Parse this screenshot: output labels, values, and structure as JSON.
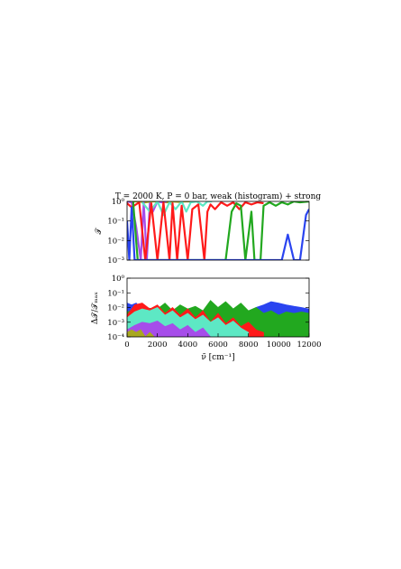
{
  "title": "T = 2000 K, P = 0 bar, weak (histogram) + strong",
  "colors": {
    "red": "#ff1a1a",
    "green": "#22a81f",
    "blue": "#2a44f0",
    "aquamarine": "#5de8c4",
    "purple": "#a64dea",
    "olive": "#a8a820"
  },
  "chart_data": [
    {
      "type": "line",
      "panel": "top",
      "ylabel": "𝒯",
      "yscale": "log",
      "xlim": [
        0,
        12000
      ],
      "ylim": [
        0.001,
        1
      ],
      "yticks": [
        {
          "value": 1,
          "label": "10⁰"
        },
        {
          "value": 0.1,
          "label": "10⁻¹"
        },
        {
          "value": 0.01,
          "label": "10⁻²"
        },
        {
          "value": 0.001,
          "label": "10⁻³"
        }
      ],
      "grid": false,
      "series": [
        {
          "color": "olive",
          "x": [
            0,
            400,
            800,
            1200,
            1600,
            2200,
            2600,
            3000,
            3400,
            3800,
            4200
          ],
          "y": [
            1,
            1,
            1,
            0.9,
            1,
            1,
            0.9,
            1,
            0.95,
            1,
            1
          ]
        },
        {
          "color": "purple",
          "x": [
            0,
            300,
            600,
            900,
            1100,
            1300,
            1500,
            1700,
            2000,
            2300,
            2600
          ],
          "y": [
            1,
            0.9,
            0.05,
            0.001,
            0.9,
            0.001,
            0.8,
            0.3,
            1,
            0.9,
            1
          ]
        },
        {
          "color": "aquamarine",
          "x": [
            1000,
            1500,
            2000,
            2400,
            2800,
            3200,
            3600,
            3900,
            4200,
            4600,
            5000,
            5300,
            5600
          ],
          "y": [
            0.9,
            0.3,
            1,
            0.2,
            0.9,
            0.4,
            1,
            0.3,
            0.9,
            1,
            0.6,
            1,
            1
          ]
        },
        {
          "color": "red",
          "x": [
            0,
            300,
            800,
            1200,
            1600,
            2000,
            2400,
            2800,
            3000,
            3300,
            3600,
            4000,
            4300,
            4700,
            5100,
            5300,
            5500,
            5800,
            6200,
            6600,
            7000,
            7400,
            7800,
            8200,
            8600,
            9000
          ],
          "y": [
            0.8,
            0.5,
            0.9,
            0.001,
            0.8,
            0.001,
            0.9,
            0.001,
            0.8,
            0.001,
            0.6,
            0.001,
            0.4,
            0.7,
            0.001,
            0.3,
            0.7,
            0.4,
            0.9,
            0.6,
            0.9,
            0.4,
            0.9,
            0.7,
            0.9,
            0.8
          ]
        },
        {
          "color": "green",
          "x": [
            400,
            700,
            900,
            1100,
            1500,
            2000,
            2500,
            3000,
            3300,
            3600,
            4000,
            4500,
            5000,
            5500,
            6000,
            6500,
            6900,
            7200,
            7500,
            7800,
            8200,
            8400,
            8600,
            8800,
            9000,
            9400,
            9800,
            10200,
            10600,
            11000,
            11400,
            12000
          ],
          "y": [
            1,
            0.001,
            0.001,
            0.001,
            0.001,
            0.001,
            0.001,
            0.001,
            0.001,
            0.001,
            0.001,
            0.001,
            0.001,
            0.001,
            0.001,
            0.001,
            0.3,
            0.8,
            0.6,
            0.001,
            0.3,
            0.001,
            0.001,
            0.001,
            0.6,
            0.9,
            0.6,
            0.9,
            0.7,
            1,
            0.9,
            1
          ]
        },
        {
          "color": "blue",
          "x": [
            0,
            150,
            300,
            500,
            600,
            700,
            900,
            1100,
            1500,
            2000,
            3000,
            4000,
            5000,
            6000,
            7000,
            8000,
            8600,
            9000,
            9400,
            9800,
            10200,
            10600,
            11000,
            11400,
            11800,
            12000
          ],
          "y": [
            0.1,
            0.001,
            0.5,
            0.001,
            0.001,
            0.001,
            0.001,
            0.001,
            0.001,
            0.001,
            0.001,
            0.001,
            0.001,
            0.001,
            0.001,
            0.001,
            0.001,
            0.001,
            0.001,
            0.001,
            0.001,
            0.02,
            0.001,
            0.001,
            0.2,
            0.4
          ]
        }
      ]
    },
    {
      "type": "area",
      "panel": "bottom",
      "xlabel": "ν̃ [cm⁻¹]",
      "ylabel": "Δ𝒯/𝒯ₘₐₓ",
      "yscale": "log",
      "xlim": [
        0,
        12000
      ],
      "ylim": [
        0.0001,
        1
      ],
      "xticks": [
        {
          "value": 0,
          "label": "0"
        },
        {
          "value": 2000,
          "label": "2000"
        },
        {
          "value": 4000,
          "label": "4000"
        },
        {
          "value": 6000,
          "label": "6000"
        },
        {
          "value": 8000,
          "label": "8000"
        },
        {
          "value": 10000,
          "label": "10000"
        },
        {
          "value": 12000,
          "label": "12000"
        }
      ],
      "yticks": [
        {
          "value": 1,
          "label": "10⁰"
        },
        {
          "value": 0.1,
          "label": "10⁻¹"
        },
        {
          "value": 0.01,
          "label": "10⁻²"
        },
        {
          "value": 0.001,
          "label": "10⁻³"
        },
        {
          "value": 0.0001,
          "label": "10⁻⁴"
        }
      ],
      "grid": false,
      "series": [
        {
          "color": "blue",
          "x": [
            0,
            300,
            600,
            900,
            1200,
            7800,
            8500,
            9000,
            9500,
            10000,
            10500,
            11000,
            11500,
            12000
          ],
          "y": [
            0.02,
            0.015,
            0.02,
            0.01,
            0.002,
            0.002,
            0.01,
            0.015,
            0.025,
            0.02,
            0.015,
            0.012,
            0.01,
            0.008
          ]
        },
        {
          "color": "green",
          "x": [
            0,
            1000,
            2000,
            2500,
            3000,
            3500,
            4000,
            4500,
            5000,
            5500,
            6000,
            6500,
            7000,
            7500,
            8000,
            8500,
            9000,
            9500,
            10000,
            10500,
            11000,
            11500,
            12000
          ],
          "y": [
            0.005,
            0.01,
            0.008,
            0.02,
            0.006,
            0.015,
            0.008,
            0.012,
            0.006,
            0.03,
            0.01,
            0.025,
            0.008,
            0.02,
            0.006,
            0.01,
            0.004,
            0.006,
            0.003,
            0.005,
            0.004,
            0.005,
            0.004
          ]
        },
        {
          "color": "red",
          "x": [
            0,
            500,
            1000,
            1500,
            2000,
            2500,
            3000,
            3500,
            4000,
            4500,
            5000,
            5500,
            6000,
            6500,
            7000,
            7500,
            8000,
            8500,
            9000
          ],
          "y": [
            0.003,
            0.015,
            0.02,
            0.008,
            0.015,
            0.004,
            0.01,
            0.003,
            0.008,
            0.002,
            0.006,
            0.001,
            0.004,
            0.0008,
            0.002,
            0.0005,
            0.001,
            0.0003,
            0.0002
          ]
        },
        {
          "color": "aquamarine",
          "x": [
            0,
            500,
            1000,
            1500,
            2000,
            2500,
            3000,
            3500,
            4000,
            4500,
            5000,
            5500,
            6000,
            6500,
            7000,
            7500,
            8000
          ],
          "y": [
            0.002,
            0.005,
            0.008,
            0.006,
            0.01,
            0.003,
            0.006,
            0.002,
            0.004,
            0.0015,
            0.003,
            0.001,
            0.002,
            0.0006,
            0.0012,
            0.0004,
            0.0002
          ]
        },
        {
          "color": "purple",
          "x": [
            0,
            500,
            1000,
            1500,
            2000,
            2500,
            3000,
            3500,
            4000,
            4500,
            5000,
            5500
          ],
          "y": [
            0.0003,
            0.0006,
            0.001,
            0.0008,
            0.0012,
            0.0005,
            0.0008,
            0.0003,
            0.0006,
            0.0002,
            0.0004,
            0.0001
          ]
        },
        {
          "color": "olive",
          "x": [
            0,
            300,
            600,
            900,
            1200,
            1500,
            1800
          ],
          "y": [
            0.0002,
            0.0003,
            0.0002,
            0.0003,
            0.0001,
            0.0002,
            0.0001
          ]
        }
      ]
    }
  ]
}
